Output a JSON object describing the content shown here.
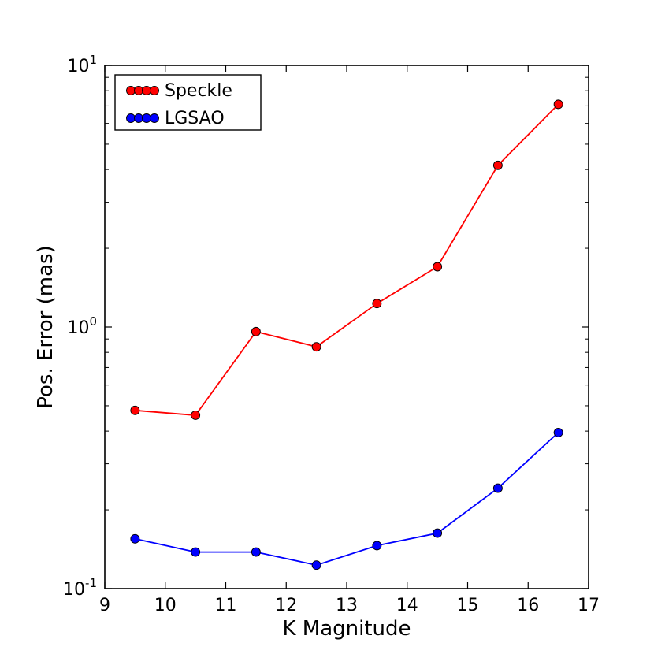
{
  "chart_data": {
    "type": "line",
    "title": "",
    "xlabel": "K Magnitude",
    "ylabel": "Pos. Error (mas)",
    "xlim": [
      9,
      17
    ],
    "ylim": [
      0.1,
      10
    ],
    "yscale": "log",
    "x_ticks": [
      9,
      10,
      11,
      12,
      13,
      14,
      15,
      16,
      17
    ],
    "x_tick_labels": [
      "9",
      "10",
      "11",
      "12",
      "13",
      "14",
      "15",
      "16",
      "17"
    ],
    "y_ticks": [
      {
        "value": 0.1,
        "base": "10",
        "exp": "-1"
      },
      {
        "value": 1,
        "base": "10",
        "exp": "0"
      },
      {
        "value": 10,
        "base": "10",
        "exp": "1"
      }
    ],
    "legend_position": "upper-left",
    "series": [
      {
        "name": "Speckle",
        "color": "#ff0000",
        "x": [
          9.5,
          10.5,
          11.5,
          12.5,
          13.5,
          14.5,
          15.5,
          16.5
        ],
        "values": [
          0.48,
          0.46,
          0.96,
          0.84,
          1.23,
          1.7,
          4.15,
          7.1
        ]
      },
      {
        "name": "LGSAO",
        "color": "#0000ff",
        "x": [
          9.5,
          10.5,
          11.5,
          12.5,
          13.5,
          14.5,
          15.5,
          16.5
        ],
        "values": [
          0.155,
          0.138,
          0.138,
          0.123,
          0.146,
          0.163,
          0.242,
          0.395
        ]
      }
    ]
  }
}
